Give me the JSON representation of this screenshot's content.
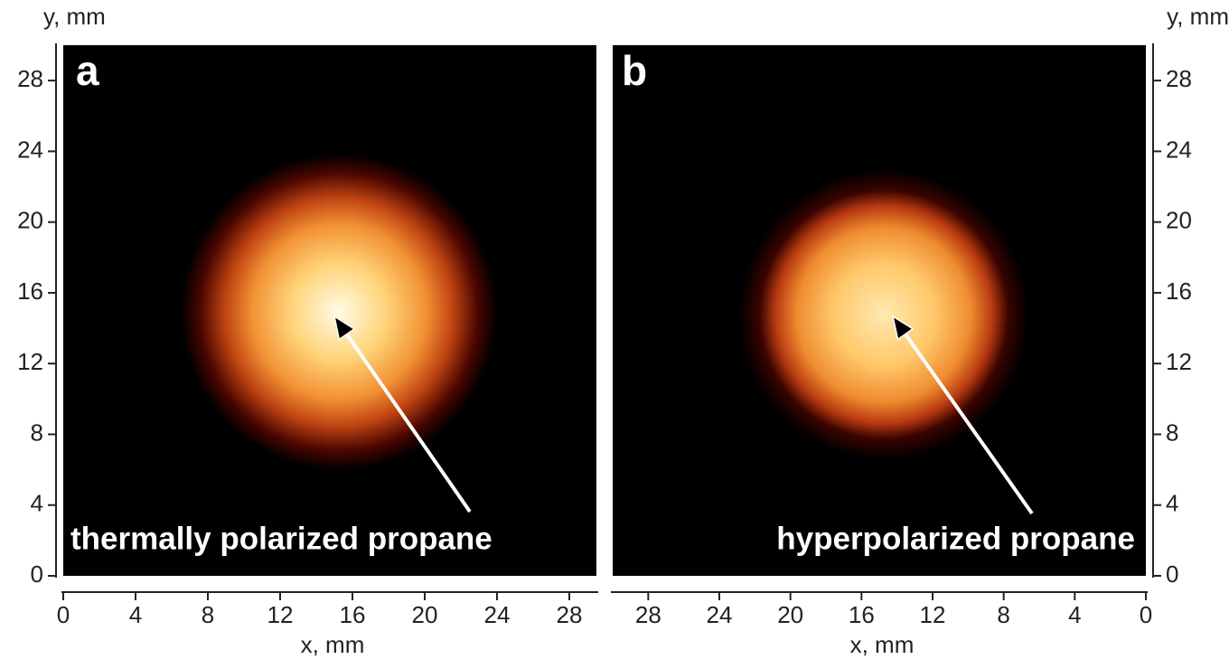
{
  "chart_data": [
    {
      "type": "image",
      "panel_label": "a",
      "annotation": "thermally polarized propane",
      "x_label": "x, mm",
      "y_label": "y, mm",
      "xlim": [
        0,
        29.5
      ],
      "ylim": [
        0,
        30
      ],
      "xticks": [
        0,
        4,
        8,
        12,
        16,
        20,
        24,
        28
      ],
      "yticks": [
        0,
        4,
        8,
        12,
        16,
        20,
        24,
        28
      ]
    },
    {
      "type": "image",
      "panel_label": "b",
      "annotation": "hyperpolarized propane",
      "x_label": "x, mm",
      "y_label": "y, mm",
      "xlim": [
        30,
        0
      ],
      "ylim": [
        0,
        30
      ],
      "xticks": [
        28,
        24,
        20,
        16,
        12,
        8,
        4,
        0
      ],
      "yticks": [
        0,
        4,
        8,
        12,
        16,
        20,
        24,
        28
      ]
    }
  ]
}
